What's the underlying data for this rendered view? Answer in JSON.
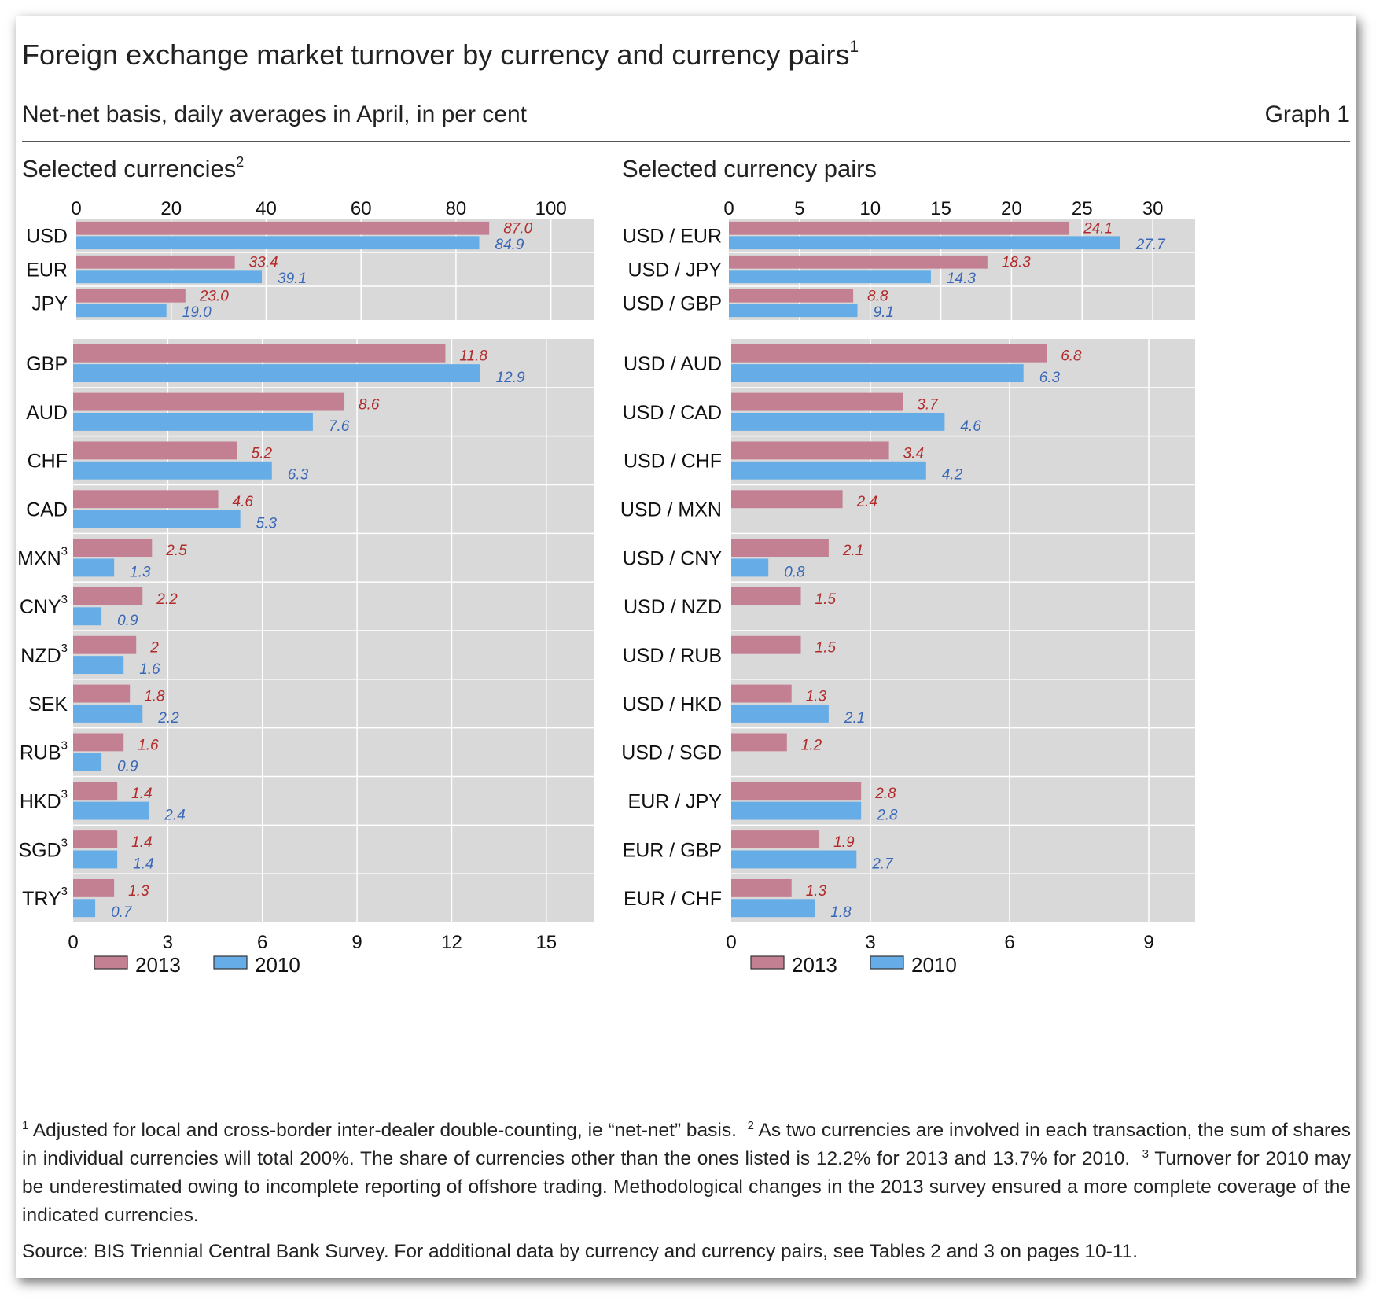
{
  "header": {
    "title": "Foreign exchange market turnover by currency and currency pairs",
    "title_sup": "1",
    "subtitle": "Net-net basis, daily averages in April, in per cent",
    "graph_label": "Graph 1"
  },
  "colors": {
    "s2013": "#c48093",
    "s2010": "#66ace6",
    "plot_bg": "#d9d9d9",
    "val2013": "#b22a2a",
    "val2010": "#3a68b8"
  },
  "chart_data": [
    {
      "type": "bar",
      "orientation": "horizontal",
      "title": "Selected currencies",
      "title_sup": "2",
      "legend": [
        "2013",
        "2010"
      ],
      "series_names": [
        "2013",
        "2010"
      ],
      "subplots": [
        {
          "xlim": [
            0,
            109
          ],
          "ticks": [
            0,
            20,
            40,
            60,
            80,
            100
          ],
          "tick_labels": [
            "0",
            "20",
            "40",
            "60",
            "80",
            "100"
          ],
          "axis": "top",
          "categories": [
            {
              "label": "USD",
              "sup": "",
              "v2013": 87.0,
              "l2013": "87.0",
              "v2010": 84.9,
              "l2010": "84.9"
            },
            {
              "label": "EUR",
              "sup": "",
              "v2013": 33.4,
              "l2013": "33.4",
              "v2010": 39.1,
              "l2010": "39.1"
            },
            {
              "label": "JPY",
              "sup": "",
              "v2013": 23.0,
              "l2013": "23.0",
              "v2010": 19.0,
              "l2010": "19.0"
            }
          ]
        },
        {
          "xlim": [
            0,
            16.5
          ],
          "ticks": [
            0,
            3,
            6,
            9,
            12,
            15
          ],
          "tick_labels": [
            "0",
            "3",
            "6",
            "9",
            "12",
            "15"
          ],
          "axis": "bottom",
          "categories": [
            {
              "label": "GBP",
              "sup": "",
              "v2013": 11.8,
              "l2013": "11.8",
              "v2010": 12.9,
              "l2010": "12.9"
            },
            {
              "label": "AUD",
              "sup": "",
              "v2013": 8.6,
              "l2013": "8.6",
              "v2010": 7.6,
              "l2010": "7.6"
            },
            {
              "label": "CHF",
              "sup": "",
              "v2013": 5.2,
              "l2013": "5.2",
              "v2010": 6.3,
              "l2010": "6.3"
            },
            {
              "label": "CAD",
              "sup": "",
              "v2013": 4.6,
              "l2013": "4.6",
              "v2010": 5.3,
              "l2010": "5.3"
            },
            {
              "label": "MXN",
              "sup": "3",
              "v2013": 2.5,
              "l2013": "2.5",
              "v2010": 1.3,
              "l2010": "1.3"
            },
            {
              "label": "CNY",
              "sup": "3",
              "v2013": 2.2,
              "l2013": "2.2",
              "v2010": 0.9,
              "l2010": "0.9"
            },
            {
              "label": "NZD",
              "sup": "3",
              "v2013": 2.0,
              "l2013": "2",
              "v2010": 1.6,
              "l2010": "1.6"
            },
            {
              "label": "SEK",
              "sup": "",
              "v2013": 1.8,
              "l2013": "1.8",
              "v2010": 2.2,
              "l2010": "2.2"
            },
            {
              "label": "RUB",
              "sup": "3",
              "v2013": 1.6,
              "l2013": "1.6",
              "v2010": 0.9,
              "l2010": "0.9"
            },
            {
              "label": "HKD",
              "sup": "3",
              "v2013": 1.4,
              "l2013": "1.4",
              "v2010": 2.4,
              "l2010": "2.4"
            },
            {
              "label": "SGD",
              "sup": "3",
              "v2013": 1.4,
              "l2013": "1.4",
              "v2010": 1.4,
              "l2010": "1.4"
            },
            {
              "label": "TRY",
              "sup": "3",
              "v2013": 1.3,
              "l2013": "1.3",
              "v2010": 0.7,
              "l2010": "0.7"
            }
          ]
        }
      ]
    },
    {
      "type": "bar",
      "orientation": "horizontal",
      "title": "Selected currency pairs",
      "title_sup": "",
      "legend": [
        "2013",
        "2010"
      ],
      "series_names": [
        "2013",
        "2010"
      ],
      "subplots": [
        {
          "xlim": [
            0,
            33
          ],
          "ticks": [
            0,
            5,
            10,
            15,
            20,
            25,
            30
          ],
          "tick_labels": [
            "0",
            "5",
            "10",
            "15",
            "20",
            "25",
            "30"
          ],
          "axis": "top",
          "categories": [
            {
              "label": "USD / EUR",
              "sup": "",
              "v2013": 24.1,
              "l2013": "24.1",
              "v2010": 27.7,
              "l2010": "27.7"
            },
            {
              "label": "USD / JPY",
              "sup": "",
              "v2013": 18.3,
              "l2013": "18.3",
              "v2010": 14.3,
              "l2010": "14.3"
            },
            {
              "label": "USD / GBP",
              "sup": "",
              "v2013": 8.8,
              "l2013": "8.8",
              "v2010": 9.1,
              "l2010": "9.1"
            }
          ]
        },
        {
          "xlim": [
            0,
            10
          ],
          "ticks": [
            0,
            3,
            6,
            9
          ],
          "tick_labels": [
            "0",
            "3",
            "6",
            "9"
          ],
          "axis": "bottom",
          "categories": [
            {
              "label": "USD / AUD",
              "sup": "",
              "v2013": 6.8,
              "l2013": "6.8",
              "v2010": 6.3,
              "l2010": "6.3"
            },
            {
              "label": "USD / CAD",
              "sup": "",
              "v2013": 3.7,
              "l2013": "3.7",
              "v2010": 4.6,
              "l2010": "4.6"
            },
            {
              "label": "USD / CHF",
              "sup": "",
              "v2013": 3.4,
              "l2013": "3.4",
              "v2010": 4.2,
              "l2010": "4.2"
            },
            {
              "label": "USD / MXN",
              "sup": "",
              "v2013": 2.4,
              "l2013": "2.4",
              "v2010": null,
              "l2010": ""
            },
            {
              "label": "USD / CNY",
              "sup": "",
              "v2013": 2.1,
              "l2013": "2.1",
              "v2010": 0.8,
              "l2010": "0.8"
            },
            {
              "label": "USD / NZD",
              "sup": "",
              "v2013": 1.5,
              "l2013": "1.5",
              "v2010": null,
              "l2010": ""
            },
            {
              "label": "USD / RUB",
              "sup": "",
              "v2013": 1.5,
              "l2013": "1.5",
              "v2010": null,
              "l2010": ""
            },
            {
              "label": "USD / HKD",
              "sup": "",
              "v2013": 1.3,
              "l2013": "1.3",
              "v2010": 2.1,
              "l2010": "2.1"
            },
            {
              "label": "USD / SGD",
              "sup": "",
              "v2013": 1.2,
              "l2013": "1.2",
              "v2010": null,
              "l2010": ""
            },
            {
              "label": "EUR / JPY",
              "sup": "",
              "v2013": 2.8,
              "l2013": "2.8",
              "v2010": 2.8,
              "l2010": "2.8"
            },
            {
              "label": "EUR / GBP",
              "sup": "",
              "v2013": 1.9,
              "l2013": "1.9",
              "v2010": 2.7,
              "l2010": "2.7"
            },
            {
              "label": "EUR / CHF",
              "sup": "",
              "v2013": 1.3,
              "l2013": "1.3",
              "v2010": 1.8,
              "l2010": "1.8"
            }
          ]
        }
      ]
    }
  ],
  "footnotes": {
    "n1_mark": "1",
    "n1": "Adjusted for local and cross-border inter-dealer double-counting, ie “net-net” basis.",
    "n2_mark": "2",
    "n2": "As two currencies are involved in each transaction, the sum of shares in individual currencies will total 200%. The share of currencies other than the ones listed is 12.2% for 2013 and 13.7% for 2010.",
    "n3_mark": "3",
    "n3": "Turnover for 2010 may be underestimated owing to incomplete reporting of offshore trading. Methodological changes in the 2013 survey ensured a more complete coverage of the indicated currencies."
  },
  "source": "Source: BIS Triennial Central Bank Survey. For additional data by currency and currency pairs, see Tables 2 and 3 on pages 10-11."
}
